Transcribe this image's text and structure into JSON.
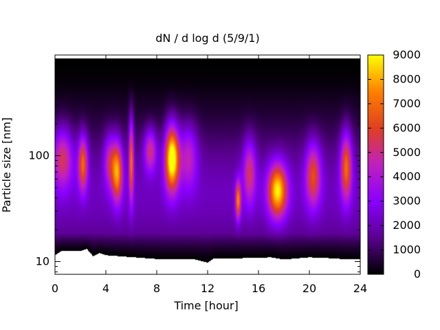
{
  "chart_data": {
    "type": "heatmap",
    "title": "dN / d log d (5/9/1)",
    "xlabel": "Time [hour]",
    "ylabel": "Particle size [nm]",
    "xlim": [
      0,
      24
    ],
    "ylim_log10": [
      0.88,
      2.95
    ],
    "ylog": true,
    "xticks": [
      0,
      4,
      8,
      12,
      16,
      20,
      24
    ],
    "yticks": [
      10,
      100
    ],
    "colorbar": {
      "min": 0,
      "max": 9000,
      "ticks": [
        0,
        1000,
        2000,
        3000,
        4000,
        5000,
        6000,
        7000,
        8000,
        9000
      ]
    },
    "palette": [
      "#000000",
      "#5a0090",
      "#8a00ff",
      "#c020c0",
      "#e04020",
      "#ff8000",
      "#ffff00"
    ],
    "data_bounds": {
      "x_min": 0.0,
      "x_max": 24.0,
      "log10_d_top": 2.92,
      "log10_d_bottom_by_hour": [
        [
          0.0,
          1.06
        ],
        [
          0.5,
          1.1
        ],
        [
          1.0,
          1.1
        ],
        [
          2.0,
          1.1
        ],
        [
          2.5,
          1.12
        ],
        [
          3.0,
          1.05
        ],
        [
          3.5,
          1.08
        ],
        [
          4.0,
          1.06
        ],
        [
          8.5,
          1.02
        ],
        [
          9.5,
          1.02
        ],
        [
          11.0,
          1.02
        ],
        [
          12.0,
          0.99
        ],
        [
          12.5,
          1.03
        ],
        [
          14.0,
          1.03
        ],
        [
          17.0,
          1.04
        ],
        [
          18.0,
          1.02
        ],
        [
          20.0,
          1.04
        ],
        [
          22.0,
          1.03
        ],
        [
          23.0,
          1.02
        ],
        [
          24.0,
          1.02
        ]
      ]
    },
    "background": {
      "peak_value": 2100,
      "peak_log10_d": 1.62,
      "width_log10": 0.68,
      "top_dark_log10": 2.88,
      "bottom_dark_log10": 1.12
    },
    "events": [
      {
        "hour": 0.6,
        "peak_log10_d": 1.98,
        "peak_value": 3900,
        "hour_width": 0.8,
        "size_width_log10": 0.28
      },
      {
        "hour": 2.2,
        "peak_log10_d": 1.93,
        "peak_value": 5200,
        "hour_width": 0.38,
        "size_width_log10": 0.26
      },
      {
        "hour": 4.3,
        "peak_log10_d": 1.95,
        "peak_value": 3200,
        "hour_width": 0.45,
        "size_width_log10": 0.25
      },
      {
        "hour": 4.9,
        "peak_log10_d": 1.85,
        "peak_value": 5900,
        "hour_width": 0.42,
        "size_width_log10": 0.28
      },
      {
        "hour": 6.0,
        "peak_log10_d": 1.96,
        "peak_value": 5500,
        "hour_width": 0.2,
        "size_width_log10": 0.38
      },
      {
        "hour": 7.5,
        "peak_log10_d": 2.05,
        "peak_value": 3800,
        "hour_width": 0.5,
        "size_width_log10": 0.2
      },
      {
        "hour": 9.2,
        "peak_log10_d": 1.98,
        "peak_value": 8500,
        "hour_width": 0.55,
        "size_width_log10": 0.3
      },
      {
        "hour": 10.5,
        "peak_log10_d": 2.0,
        "peak_value": 3000,
        "hour_width": 0.7,
        "size_width_log10": 0.3
      },
      {
        "hour": 14.4,
        "peak_log10_d": 1.58,
        "peak_value": 5500,
        "hour_width": 0.22,
        "size_width_log10": 0.18
      },
      {
        "hour": 15.3,
        "peak_log10_d": 1.85,
        "peak_value": 3600,
        "hour_width": 0.5,
        "size_width_log10": 0.3
      },
      {
        "hour": 17.5,
        "peak_log10_d": 1.67,
        "peak_value": 6900,
        "hour_width": 0.75,
        "size_width_log10": 0.25
      },
      {
        "hour": 20.3,
        "peak_log10_d": 1.82,
        "peak_value": 4400,
        "hour_width": 0.6,
        "size_width_log10": 0.3
      },
      {
        "hour": 22.9,
        "peak_log10_d": 1.9,
        "peak_value": 5200,
        "hour_width": 0.45,
        "size_width_log10": 0.32
      }
    ]
  }
}
